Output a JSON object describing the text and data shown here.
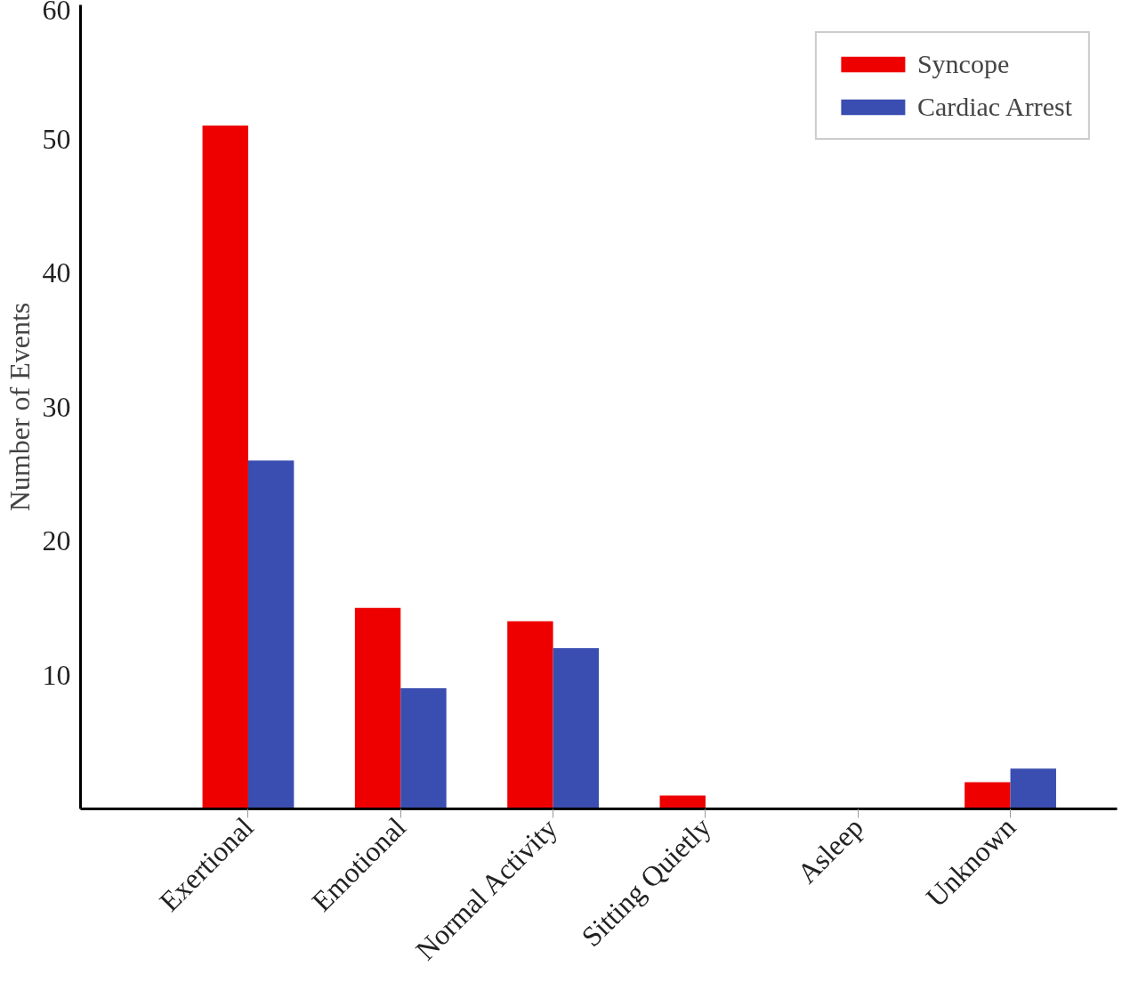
{
  "chart_data": {
    "type": "bar",
    "ylabel": "Number of Events",
    "categories": [
      "Exertional",
      "Emotional",
      "Normal Activity",
      "Sitting Quietly",
      "Asleep",
      "Unknown"
    ],
    "series": [
      {
        "name": "Syncope",
        "color": "#ee0000",
        "values": [
          51,
          15,
          14,
          1,
          0,
          2
        ]
      },
      {
        "name": "Cardiac Arrest",
        "color": "#3a4db0",
        "values": [
          26,
          9,
          12,
          0,
          0,
          3
        ]
      }
    ],
    "ylim": [
      0,
      60
    ],
    "yticks": [
      10,
      20,
      30,
      40,
      50,
      60
    ],
    "legend": "top right"
  }
}
